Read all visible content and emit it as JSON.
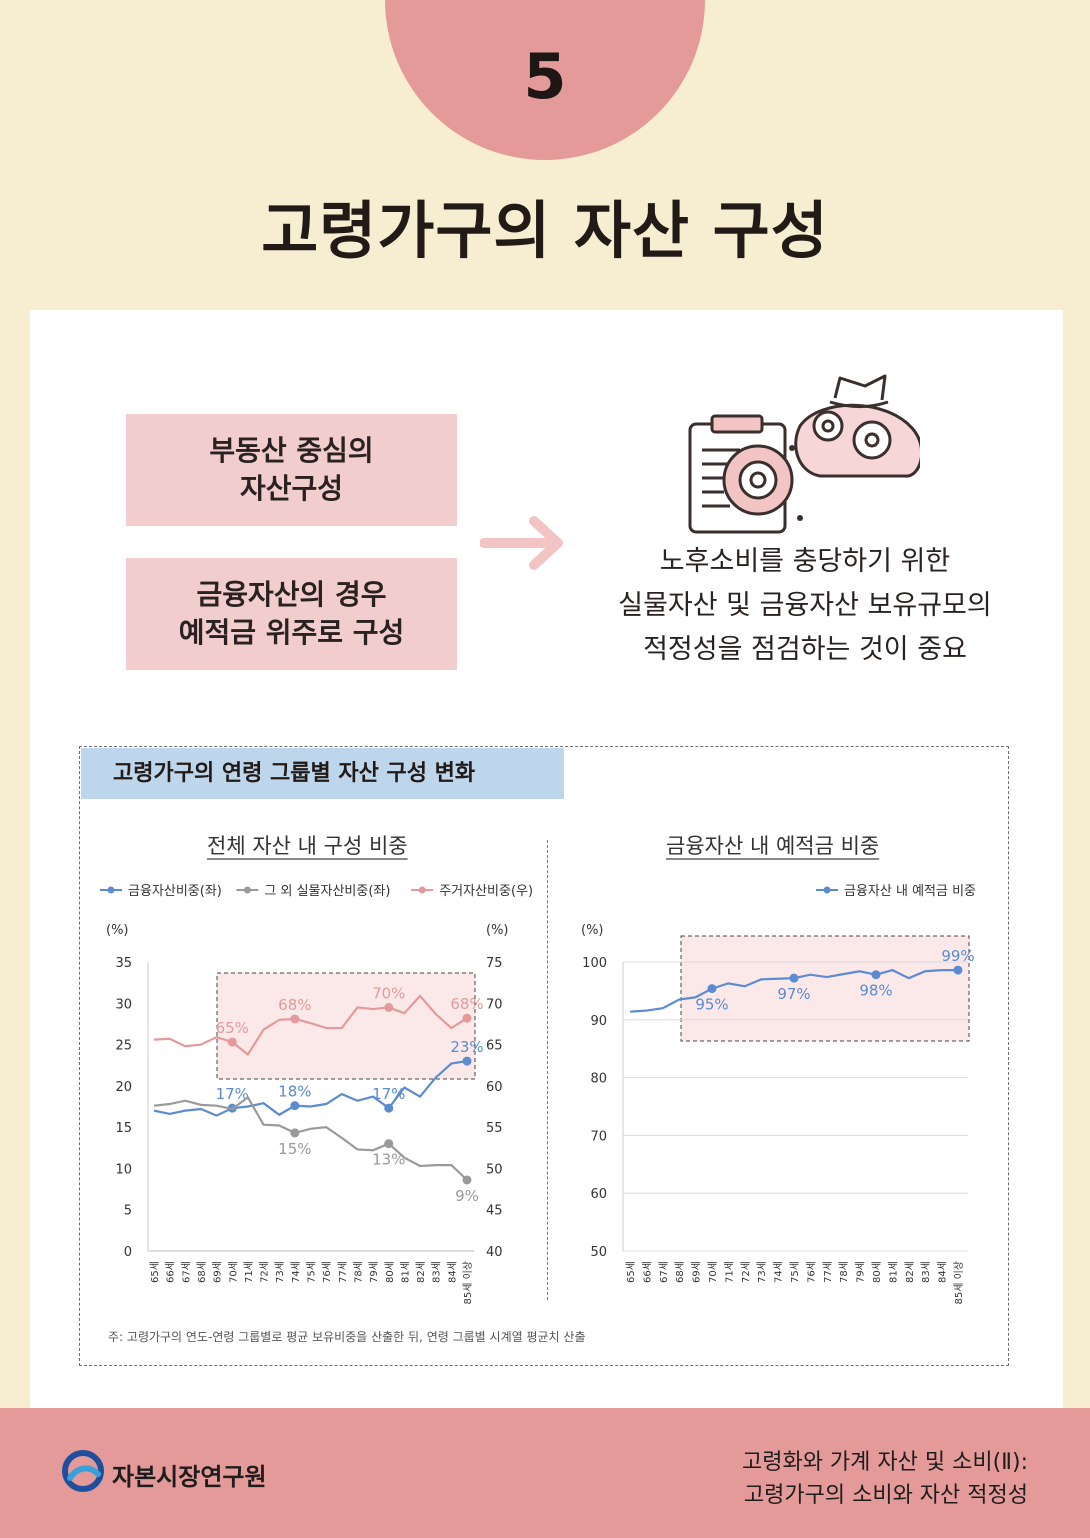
{
  "header": {
    "number": "5",
    "title": "고령가구의 자산 구성"
  },
  "points": [
    "부동산 중심의\n자산구성",
    "금융자산의 경우\n예적금 위주로 구성"
  ],
  "conclusion": "노후소비를 충당하기 위한\n실물자산 및 금융자산 보유규모의\n적정성을 점검하는 것이 중요",
  "colors": {
    "blue": "#5b8bd0",
    "gray": "#9a9a9a",
    "pink": "#e49a99",
    "box_fill": "#f2cdcd",
    "header_bg": "#bed6ec"
  },
  "chart_section": {
    "title": "고령가구의 연령 그룹별 자산 구성 변화",
    "note": "주: 고령가구의 연도-연령 그룹별로 평균 보유비중을 산출한 뒤, 연령 그룹별 시계열 평균치 산출"
  },
  "chart_data": [
    {
      "type": "line",
      "title": "전체 자산 내 구성 비중",
      "ylabel_left": "(%)",
      "ylabel_right": "(%)",
      "ylim_left": [
        0,
        35
      ],
      "ylim_right": [
        40,
        75
      ],
      "yticks_left": [
        0,
        5,
        10,
        15,
        20,
        25,
        30,
        35
      ],
      "yticks_right": [
        40,
        45,
        50,
        55,
        60,
        65,
        70,
        75
      ],
      "legend": "top",
      "categories": [
        "65세",
        "66세",
        "67세",
        "68세",
        "69세",
        "70세",
        "71세",
        "72세",
        "73세",
        "74세",
        "75세",
        "76세",
        "77세",
        "78세",
        "79세",
        "80세",
        "81세",
        "82세",
        "83세",
        "84세",
        "85세 이상"
      ],
      "series": [
        {
          "name": "금융자산비중(좌)",
          "axis": "left",
          "color": "#5b8bd0",
          "values": [
            17.0,
            16.6,
            17.0,
            17.2,
            16.4,
            17.3,
            17.5,
            17.9,
            16.5,
            17.6,
            17.5,
            17.8,
            19.0,
            18.2,
            18.7,
            17.3,
            19.8,
            18.7,
            21.0,
            22.7,
            23.0
          ],
          "labels": [
            [
              5,
              "17%"
            ],
            [
              9,
              "18%"
            ],
            [
              15,
              "17%"
            ],
            [
              20,
              "23%"
            ]
          ]
        },
        {
          "name": "그 외 실물자산비중(좌)",
          "axis": "left",
          "color": "#9a9a9a",
          "values": [
            17.6,
            17.8,
            18.2,
            17.7,
            17.6,
            17.2,
            18.6,
            15.3,
            15.2,
            14.3,
            14.8,
            15.0,
            13.7,
            12.3,
            12.2,
            13.0,
            11.3,
            10.3,
            10.4,
            10.4,
            8.6
          ],
          "labels": [
            [
              9,
              "15%"
            ],
            [
              15,
              "13%"
            ],
            [
              20,
              "9%"
            ]
          ]
        },
        {
          "name": "주거자산비중(우)",
          "axis": "right",
          "color": "#e49a99",
          "values": [
            65.6,
            65.7,
            64.8,
            65.0,
            65.9,
            65.3,
            63.8,
            66.8,
            68.0,
            68.1,
            67.6,
            67.0,
            67.0,
            69.5,
            69.3,
            69.5,
            68.8,
            70.9,
            68.7,
            67.0,
            68.2
          ],
          "labels": [
            [
              5,
              "65%"
            ],
            [
              9,
              "68%"
            ],
            [
              15,
              "70%"
            ],
            [
              20,
              "68%"
            ]
          ]
        }
      ]
    },
    {
      "type": "line",
      "title": "금융자산 내 예적금 비중",
      "ylabel": "(%)",
      "ylim": [
        50,
        100
      ],
      "yticks": [
        50,
        60,
        70,
        80,
        90,
        100
      ],
      "legend": "top-right",
      "categories": [
        "65세",
        "66세",
        "67세",
        "68세",
        "69세",
        "70세",
        "71세",
        "72세",
        "73세",
        "74세",
        "75세",
        "76세",
        "77세",
        "78세",
        "79세",
        "80세",
        "81세",
        "82세",
        "83세",
        "84세",
        "85세 이상"
      ],
      "series": [
        {
          "name": "금융자산 내 예적금 비중",
          "axis": "left",
          "color": "#5b8bd0",
          "values": [
            91.4,
            91.6,
            92.0,
            93.5,
            93.9,
            95.4,
            96.3,
            95.8,
            97.0,
            97.1,
            97.2,
            97.8,
            97.4,
            97.9,
            98.4,
            97.8,
            98.6,
            97.2,
            98.4,
            98.6,
            98.6
          ],
          "labels": [
            [
              5,
              "95%"
            ],
            [
              10,
              "97%"
            ],
            [
              15,
              "98%"
            ],
            [
              20,
              "99%"
            ]
          ]
        }
      ]
    }
  ],
  "footer": {
    "org": "자본시장연구원",
    "series_title": "고령화와 가계 자산 및 소비(Ⅱ):\n고령가구의 소비와 자산 적정성"
  }
}
